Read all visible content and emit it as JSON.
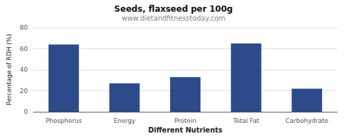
{
  "chart_data": {
    "type": "bar",
    "title": "Seeds, flaxseed per 100g",
    "subtitle": "www.dietandfitnesstoday.com",
    "xlabel": "Different Nutrients",
    "ylabel": "Percentage of RDH (%)",
    "categories": [
      "Phosphorus",
      "Energy",
      "Protein",
      "Total Fat",
      "Carbohydrate"
    ],
    "values": [
      64,
      27,
      33,
      65,
      22
    ],
    "color": "#2d4a8a",
    "ylim": [
      0,
      80
    ],
    "yticks": [
      0,
      20,
      40,
      60,
      80
    ],
    "grid": true
  }
}
